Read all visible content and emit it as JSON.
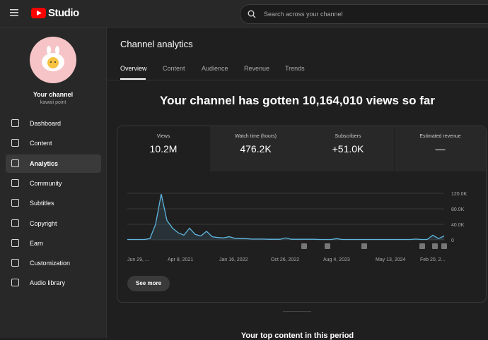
{
  "topbar": {
    "logo": "Studio",
    "search_placeholder": "Search across your channel"
  },
  "sidebar": {
    "channel_name": "Your channel",
    "channel_handle": "kawaii point",
    "items": [
      "Dashboard",
      "Content",
      "Analytics",
      "Community",
      "Subtitles",
      "Copyright",
      "Earn",
      "Customization",
      "Audio library"
    ],
    "selected": "Analytics"
  },
  "page": {
    "title": "Channel analytics",
    "tabs": [
      "Overview",
      "Content",
      "Audience",
      "Revenue",
      "Trends"
    ],
    "active_tab": "Overview",
    "headline": "Your channel has gotten 10,164,010 views so far",
    "metrics": [
      {
        "label": "Views",
        "value": "10.2M"
      },
      {
        "label": "Watch time (hours)",
        "value": "476.2K"
      },
      {
        "label": "Subscribers",
        "value": "+51.0K"
      },
      {
        "label": "Estimated revenue",
        "value": "—"
      }
    ],
    "chart": {
      "type": "line",
      "color": "#5fb7e0",
      "x_tick_labels": [
        "Jun 29, ...",
        "Apr 8, 2021",
        "Jan 16, 2022",
        "Oct 26, 2022",
        "Aug 4, 2023",
        "May 13, 2024",
        "Feb 20, 2..."
      ],
      "values": [
        1000,
        1000,
        1000,
        1000,
        3000,
        40000,
        118000,
        50000,
        30000,
        18000,
        12000,
        30000,
        14000,
        10000,
        22000,
        8000,
        6000,
        5000,
        8000,
        4000,
        3000,
        3000,
        2000,
        2000,
        2000,
        1500,
        1500,
        1500,
        5000,
        1500,
        1500,
        1500,
        1500,
        1500,
        1000,
        1000,
        1000,
        3000,
        1000,
        1000,
        1000,
        1000,
        1000,
        1000,
        1000,
        1000,
        1000,
        1000,
        1000,
        1000,
        1000,
        2000,
        1000,
        1000,
        12000,
        3000,
        10000
      ],
      "ylim": [
        0,
        120000
      ],
      "yticks": [
        {
          "value": 0,
          "label": "0"
        },
        {
          "value": 40000,
          "label": "40.0K"
        },
        {
          "value": 80000,
          "label": "80.0K"
        },
        {
          "value": 120000,
          "label": "120.0K"
        }
      ]
    },
    "see_more": "See more",
    "bottom_heading": "Your top content in this period"
  }
}
